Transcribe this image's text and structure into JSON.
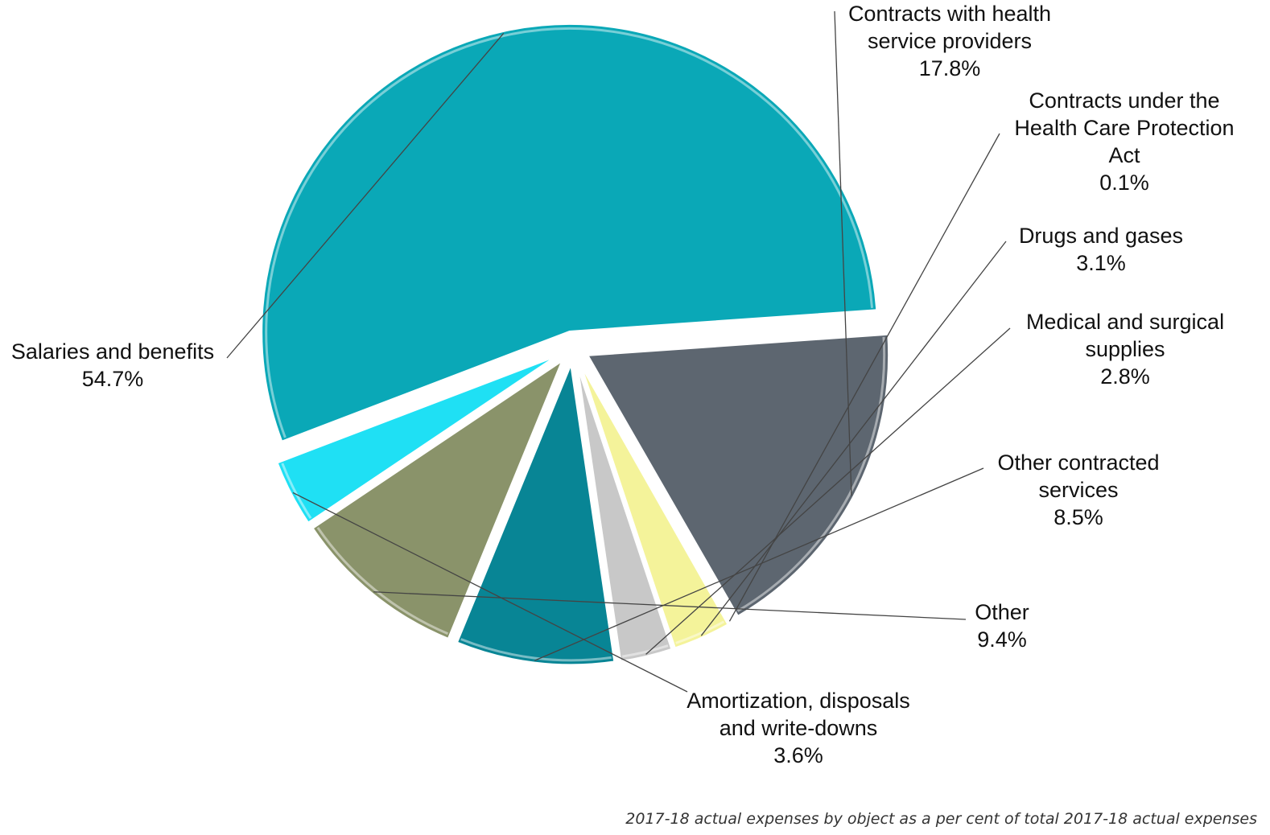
{
  "chart_data": {
    "type": "pie",
    "caption": "2017-18 actual expenses by object as a per cent of total 2017-18 actual expenses",
    "slices": [
      {
        "label_lines": [
          "Contracts with health",
          "service providers",
          "17.8%"
        ],
        "value": 17.8,
        "color": "#5d6670"
      },
      {
        "label_lines": [
          "Contracts under the",
          "Health Care Protection",
          "Act",
          "0.1%"
        ],
        "value": 0.1,
        "color": "#a9b3bc"
      },
      {
        "label_lines": [
          "Drugs and gases",
          "3.1%"
        ],
        "value": 3.1,
        "color": "#f4f39a"
      },
      {
        "label_lines": [
          "Medical and surgical",
          "supplies",
          "2.8%"
        ],
        "value": 2.8,
        "color": "#c8c8c8"
      },
      {
        "label_lines": [
          "Other contracted",
          "services",
          "8.5%"
        ],
        "value": 8.5,
        "color": "#088595"
      },
      {
        "label_lines": [
          "Other",
          "9.4%"
        ],
        "value": 9.4,
        "color": "#8a936a"
      },
      {
        "label_lines": [
          "Amortization, disposals",
          "and write-downs",
          "3.6%"
        ],
        "value": 3.6,
        "color": "#1fe0f4"
      },
      {
        "label_lines": [
          "Salaries and benefits",
          "54.7%"
        ],
        "value": 54.7,
        "color": "#0aa8b7"
      }
    ]
  }
}
